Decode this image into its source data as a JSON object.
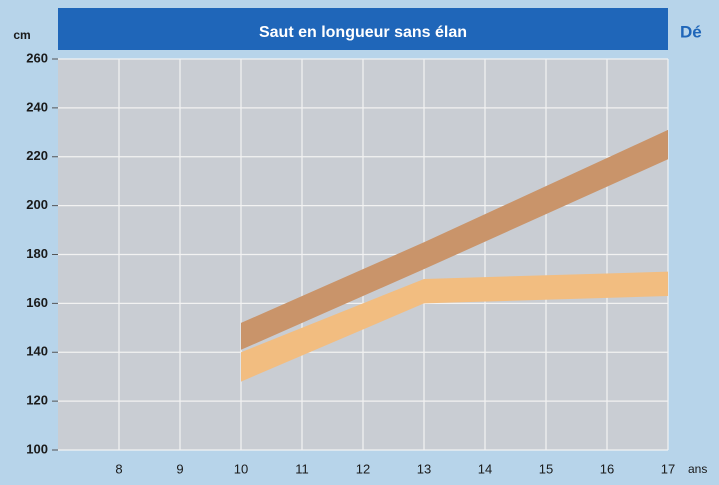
{
  "chart_data": {
    "type": "band",
    "title": "Saut en longueur sans élan",
    "y_unit": "cm",
    "x_unit": "ans",
    "side_text": "Dé",
    "x": [
      10,
      13,
      17
    ],
    "series": [
      {
        "color": "#c9946a",
        "lower": [
          141,
          174,
          219
        ],
        "upper": [
          152,
          185,
          231
        ]
      },
      {
        "color": "#f2bd80",
        "lower": [
          128,
          160,
          163
        ],
        "upper": [
          140,
          170,
          173
        ]
      }
    ],
    "xlim": [
      7,
      17
    ],
    "xticks": [
      8,
      9,
      10,
      11,
      12,
      13,
      14,
      15,
      16,
      17
    ],
    "ylim": [
      100,
      260
    ],
    "yticks": [
      100,
      120,
      140,
      160,
      180,
      200,
      220,
      240,
      260
    ],
    "grid": true
  }
}
